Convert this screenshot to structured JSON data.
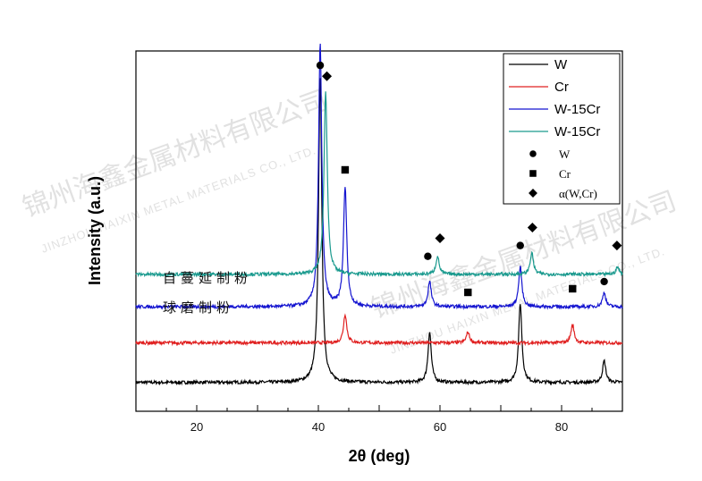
{
  "chart_data": {
    "type": "line",
    "xlabel": "2θ (deg)",
    "ylabel": "Intensity (a.u.)",
    "xlim": [
      10,
      90
    ],
    "ylim": [
      0,
      100
    ],
    "x_ticks": [
      20,
      40,
      60,
      80
    ],
    "x_tick_labels": [
      "20",
      "40",
      "60",
      "80"
    ],
    "y_ticks_shown": false,
    "grid": false,
    "legend_position": "top-right",
    "series": [
      {
        "name": "W",
        "color": "#000000",
        "baseline": 8,
        "peaks": [
          {
            "x": 40.3,
            "height": 85
          },
          {
            "x": 58.3,
            "height": 14
          },
          {
            "x": 73.2,
            "height": 22
          },
          {
            "x": 87.0,
            "height": 6
          }
        ]
      },
      {
        "name": "Cr",
        "color": "#e02020",
        "baseline": 19,
        "peaks": [
          {
            "x": 44.4,
            "height": 8
          },
          {
            "x": 64.6,
            "height": 3
          },
          {
            "x": 81.8,
            "height": 5
          }
        ]
      },
      {
        "name": "W-15Cr",
        "color": "#1515d0",
        "baseline": 29,
        "peaks": [
          {
            "x": 40.3,
            "height": 73
          },
          {
            "x": 44.4,
            "height": 33
          },
          {
            "x": 58.3,
            "height": 7
          },
          {
            "x": 73.2,
            "height": 11
          },
          {
            "x": 87.0,
            "height": 4
          }
        ]
      },
      {
        "name": "W-15Cr",
        "color": "#1a9a8e",
        "baseline": 38,
        "peaks": [
          {
            "x": 41.2,
            "height": 51
          },
          {
            "x": 59.6,
            "height": 5
          },
          {
            "x": 75.1,
            "height": 6
          },
          {
            "x": 89.2,
            "height": 2
          }
        ]
      }
    ],
    "legend_markers": [
      {
        "symbol": "circle",
        "label": "W"
      },
      {
        "symbol": "square",
        "label": "Cr"
      },
      {
        "symbol": "diamond",
        "label": "α(W,Cr)"
      }
    ],
    "peak_markers": [
      {
        "symbol": "circle",
        "x": 40.3,
        "y": 96
      },
      {
        "symbol": "diamond",
        "x": 41.4,
        "y": 93
      },
      {
        "symbol": "square",
        "x": 44.4,
        "y": 67
      },
      {
        "symbol": "diamond",
        "x": 60.0,
        "y": 48
      },
      {
        "symbol": "circle",
        "x": 58.0,
        "y": 43
      },
      {
        "symbol": "circle",
        "x": 73.2,
        "y": 46
      },
      {
        "symbol": "diamond",
        "x": 75.2,
        "y": 51
      },
      {
        "symbol": "diamond",
        "x": 89.1,
        "y": 46
      },
      {
        "symbol": "square",
        "x": 64.6,
        "y": 33
      },
      {
        "symbol": "square",
        "x": 81.8,
        "y": 34
      },
      {
        "symbol": "circle",
        "x": 87.0,
        "y": 36
      }
    ],
    "annotations": [
      {
        "text": "自蔓延制粉",
        "x": 13,
        "y": 41
      },
      {
        "text": "球磨制粉",
        "x": 13,
        "y": 31
      }
    ]
  },
  "watermark": {
    "company_cn": "锦州海鑫金属材料有限公司",
    "company_en": "JINZHOU HAIXIN METAL MATERIALS CO., LTD."
  }
}
